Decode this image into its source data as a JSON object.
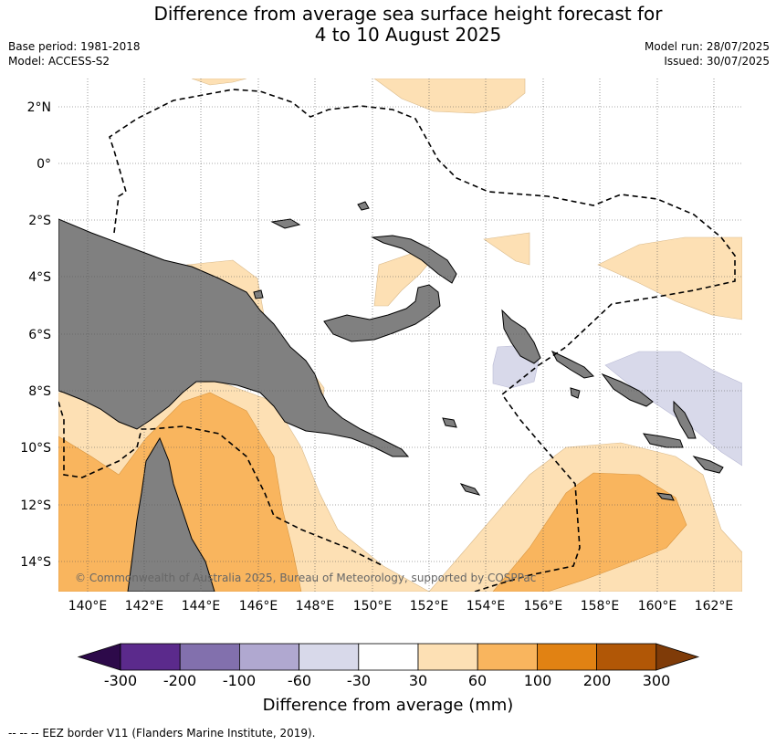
{
  "title_line1": "Difference from average sea surface height forecast for",
  "title_line2": "4 to 10 August 2025",
  "base_period": "Base period: 1981-2018",
  "model": "Model: ACCESS-S2",
  "model_run": "Model run: 28/07/2025",
  "issued": "Issued: 30/07/2025",
  "lat_labels": [
    "2°N",
    "0°",
    "2°S",
    "4°S",
    "6°S",
    "8°S",
    "10°S",
    "12°S",
    "14°S"
  ],
  "lon_labels": [
    "140°E",
    "142°E",
    "144°E",
    "146°E",
    "148°E",
    "150°E",
    "152°E",
    "154°E",
    "156°E",
    "158°E",
    "160°E",
    "162°E"
  ],
  "copyright": "© Commonwealth of Australia 2025, Bureau of Meteorology, supported by COSPPac",
  "colorbar": {
    "ticks": [
      "-300",
      "-200",
      "-100",
      "-60",
      "-30",
      "30",
      "60",
      "100",
      "200",
      "300"
    ],
    "colors": [
      "#2d0a4a",
      "#5b2a8c",
      "#8270ad",
      "#b0a8d0",
      "#d8d9ea",
      "#ffffff",
      "#fde0b4",
      "#f9b55e",
      "#e18213",
      "#b15706",
      "#7f3b08"
    ],
    "label": "Difference from average (mm)"
  },
  "legend_note": "--  --  -- EEZ border V11 (Flanders Marine Institute, 2019)."
}
